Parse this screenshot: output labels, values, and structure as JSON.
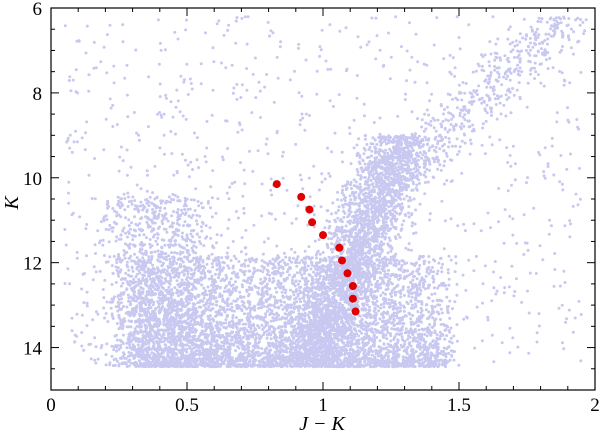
{
  "chart_data": {
    "type": "scatter",
    "title": "",
    "xlabel": "J − K",
    "ylabel": "K",
    "xlim": [
      0,
      2
    ],
    "ylim": [
      15,
      6
    ],
    "y_inverted": true,
    "grid": false,
    "legend": "none",
    "x_ticks_major": [
      0,
      0.5,
      1,
      1.5,
      2
    ],
    "x_tick_labels": [
      "0",
      "0.5",
      "1",
      "1.5",
      "2"
    ],
    "y_ticks_major": [
      6,
      8,
      10,
      12,
      14
    ],
    "y_tick_labels": [
      "6",
      "8",
      "10",
      "12",
      "14"
    ],
    "colors": {
      "field": "#c8c8f0",
      "highlight": "#e00000"
    },
    "highlight_points": [
      {
        "x": 0.83,
        "y": 10.15
      },
      {
        "x": 0.92,
        "y": 10.45
      },
      {
        "x": 0.95,
        "y": 10.75
      },
      {
        "x": 0.96,
        "y": 11.05
      },
      {
        "x": 1.0,
        "y": 11.35
      },
      {
        "x": 1.06,
        "y": 11.65
      },
      {
        "x": 1.07,
        "y": 11.95
      },
      {
        "x": 1.09,
        "y": 12.25
      },
      {
        "x": 1.11,
        "y": 12.55
      },
      {
        "x": 1.11,
        "y": 12.85
      },
      {
        "x": 1.12,
        "y": 13.15
      }
    ]
  }
}
